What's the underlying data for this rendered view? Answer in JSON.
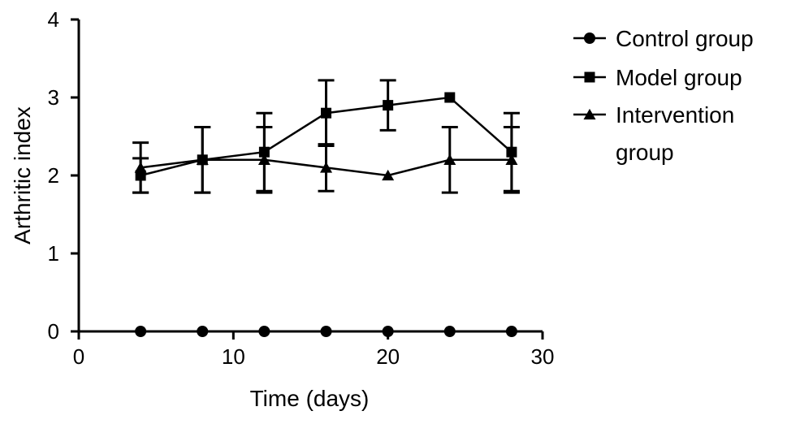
{
  "chart_data": {
    "type": "line",
    "xlabel": "Time (days)",
    "ylabel": "Arthritic index",
    "xlim": [
      0,
      30
    ],
    "ylim": [
      0,
      4
    ],
    "xticks": [
      0,
      10,
      20,
      30
    ],
    "yticks": [
      0,
      1,
      2,
      3,
      4
    ],
    "grid": false,
    "legend_position": "right",
    "series": [
      {
        "name": "Control group",
        "marker": "circle",
        "x": [
          4,
          8,
          12,
          16,
          20,
          24,
          28
        ],
        "y": [
          0,
          0,
          0,
          0,
          0,
          0,
          0
        ],
        "err": [
          0,
          0,
          0,
          0,
          0,
          0,
          0
        ]
      },
      {
        "name": "Model group",
        "marker": "square",
        "x": [
          4,
          8,
          12,
          16,
          20,
          24,
          28
        ],
        "y": [
          2.0,
          2.2,
          2.3,
          2.8,
          2.9,
          3.0,
          2.3
        ],
        "err": [
          0.22,
          0.42,
          0.5,
          0.42,
          0.32,
          0,
          0.5
        ]
      },
      {
        "name": "Intervention group",
        "name_lines": [
          "Intervention",
          "group"
        ],
        "marker": "triangle",
        "x": [
          4,
          8,
          12,
          16,
          20,
          24,
          28
        ],
        "y": [
          2.1,
          2.2,
          2.2,
          2.1,
          2.0,
          2.2,
          2.2
        ],
        "err": [
          0.32,
          0.42,
          0.42,
          0.3,
          0,
          0.42,
          0.42
        ]
      }
    ],
    "colors": {
      "line": "#000000"
    }
  }
}
